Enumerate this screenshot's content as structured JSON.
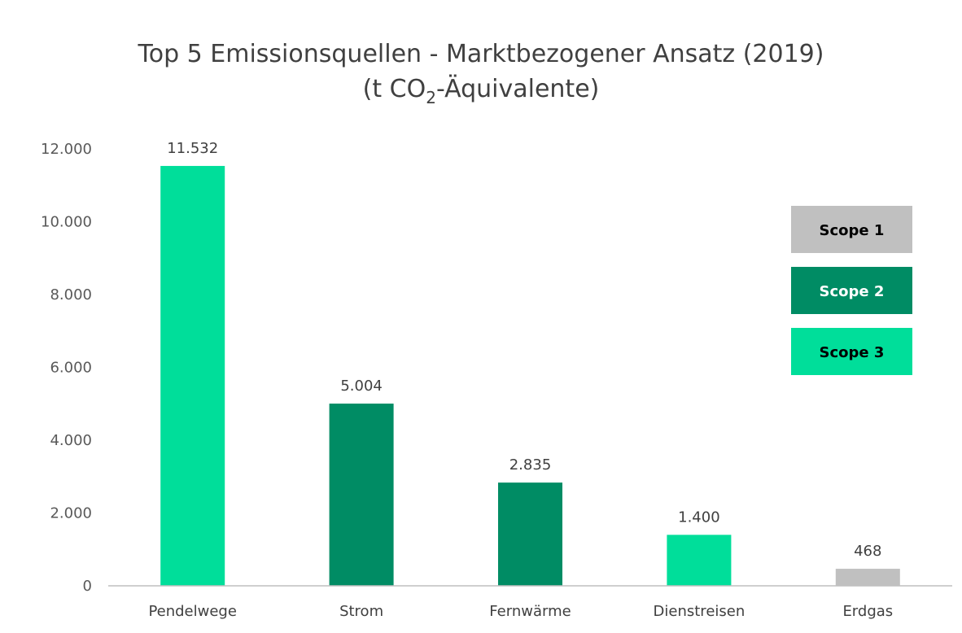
{
  "chart_data": {
    "type": "bar",
    "title_line1": "Top 5 Emissionsquellen - Marktbezogener Ansatz (2019)",
    "title_line2_prefix": "(t CO",
    "title_line2_sub": "2",
    "title_line2_suffix": "-Äquivalente)",
    "categories": [
      "Pendelwege",
      "Strom",
      "Fernwärme",
      "Dienstreisen",
      "Erdgas"
    ],
    "values": [
      11532,
      5004,
      2835,
      1400,
      468
    ],
    "value_labels": [
      "11.532",
      "5.004",
      "2.835",
      "1.400",
      "468"
    ],
    "scopes": [
      "Scope 3",
      "Scope 2",
      "Scope 2",
      "Scope 3",
      "Scope 1"
    ],
    "ylim": [
      0,
      12000
    ],
    "y_ticks": [
      0,
      2000,
      4000,
      6000,
      8000,
      10000,
      12000
    ],
    "y_tick_labels": [
      "0",
      "2.000",
      "4.000",
      "6.000",
      "8.000",
      "10.000",
      "12.000"
    ],
    "grid": false,
    "legend_position": "right",
    "legend": [
      {
        "label": "Scope 1",
        "color": "#C0C0C0",
        "text_color": "#000000"
      },
      {
        "label": "Scope 2",
        "color": "#008C64",
        "text_color": "#FFFFFF"
      },
      {
        "label": "Scope 3",
        "color": "#00DE9A",
        "text_color": "#000000"
      }
    ],
    "colors": {
      "Scope 1": "#C0C0C0",
      "Scope 2": "#008C64",
      "Scope 3": "#00DE9A"
    }
  }
}
